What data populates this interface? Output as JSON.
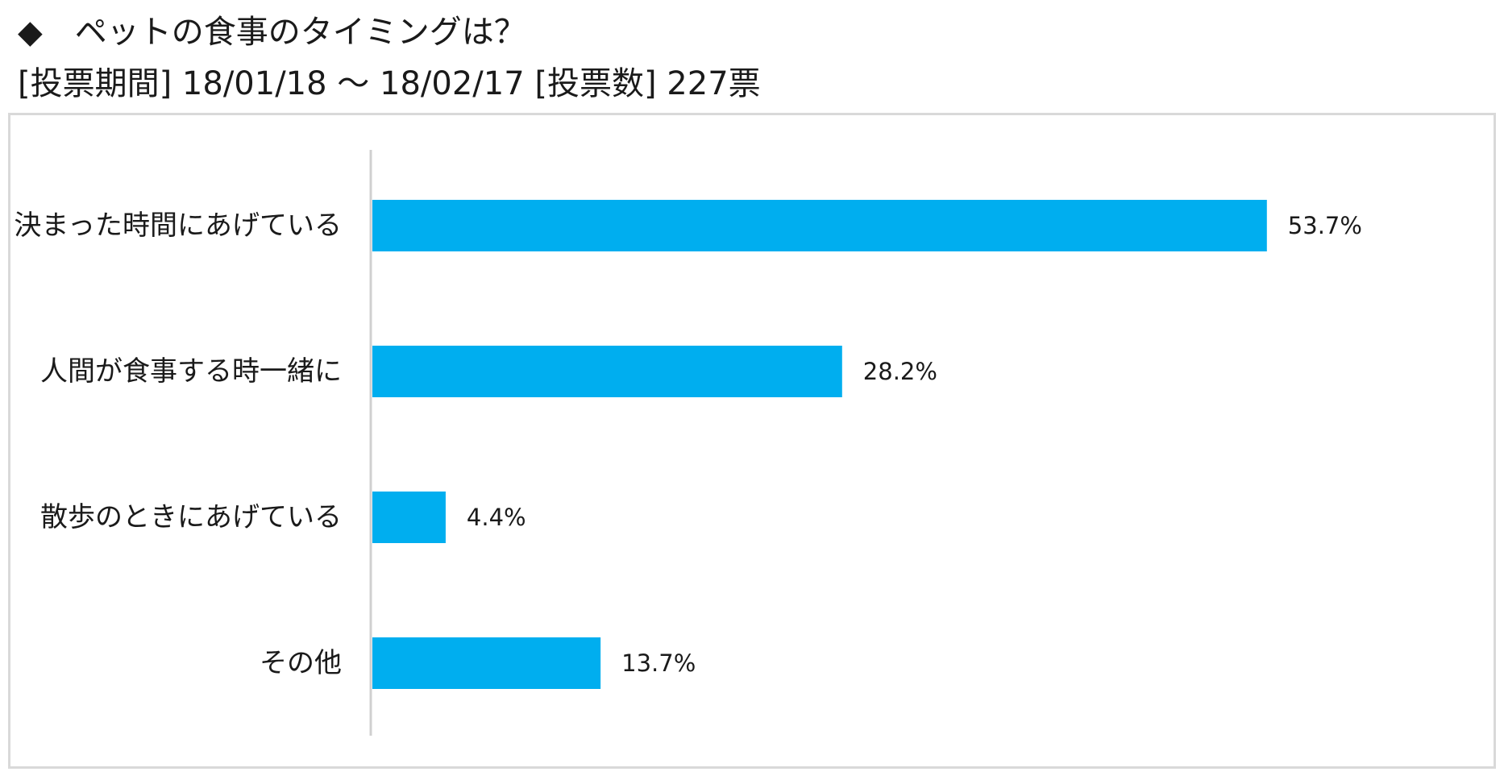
{
  "title": "◆　ペットの食事のタイミングは？",
  "subtitle": "[投票期間] 18/01/18 ～ 18/02/17 [投票数] 227票",
  "colors": {
    "bar": "#00AEEF",
    "axis": "#d0d0d0",
    "frame": "#d9d9d9"
  },
  "chart_data": {
    "type": "bar",
    "orientation": "horizontal",
    "categories": [
      "決まった時間にあげている",
      "人間が食事する時一緒に",
      "散歩のときにあげている",
      "その他"
    ],
    "values": [
      53.7,
      28.2,
      4.4,
      13.7
    ],
    "value_labels": [
      "53.7%",
      "28.2%",
      "4.4%",
      "13.7%"
    ],
    "unit": "%",
    "xlim": [
      0,
      60
    ],
    "grid": false,
    "legend": "none"
  }
}
